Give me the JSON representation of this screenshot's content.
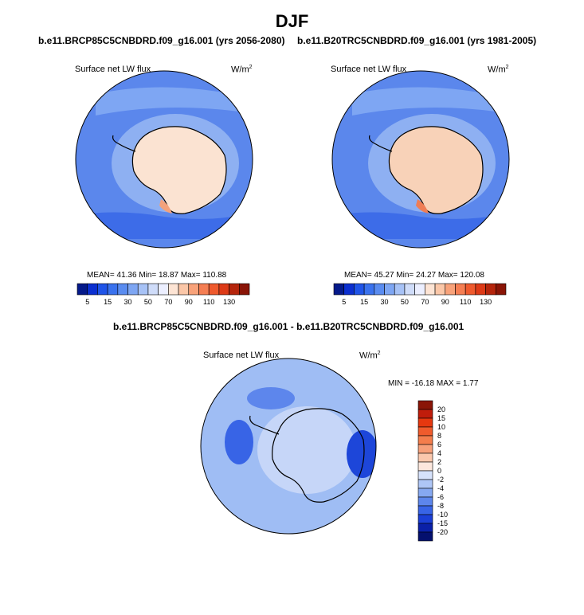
{
  "page": {
    "title": "DJF"
  },
  "panels": [
    {
      "run_title": "b.e11.BRCP85C5CNBDRD.f09_g16.001 (yrs 2056-2080)",
      "var_label": "Surface net LW flux",
      "unit": "W/m",
      "unit_sup": "2",
      "stats": "MEAN=  41.36   Min=  18.87   Max=  110.88"
    },
    {
      "run_title": "b.e11.B20TRC5CNBDRD.f09_g16.001 (yrs 1981-2005)",
      "var_label": "Surface net LW flux",
      "unit": "W/m",
      "unit_sup": "2",
      "stats": "MEAN=  45.27   Min=  24.27   Max=  120.08"
    }
  ],
  "diff": {
    "title": "b.e11.BRCP85C5CNBDRD.f09_g16.001 - b.e11.B20TRC5CNBDRD.f09_g16.001",
    "var_label": "Surface net LW flux",
    "unit": "W/m",
    "unit_sup": "2",
    "stats": "MIN = -16.18 MAX =   1.77"
  },
  "chart_data": [
    {
      "type": "heatmap",
      "projection": "south polar stereographic",
      "variable": "Surface net LW flux",
      "units": "W/m2",
      "mean": 41.36,
      "min": 18.87,
      "max": 110.88,
      "colorbar": {
        "orientation": "horizontal",
        "levels": [
          5,
          10,
          15,
          20,
          25,
          30,
          40,
          50,
          60,
          70,
          80,
          90,
          100,
          110,
          120,
          130
        ],
        "tick_labels": [
          "5",
          "15",
          "30",
          "50",
          "70",
          "90",
          "110",
          "130"
        ],
        "colors": [
          "#051a8a",
          "#0b2fd0",
          "#1f54e8",
          "#3a72ee",
          "#5a8cf0",
          "#7ea6f3",
          "#a7c2f6",
          "#cfdcf9",
          "#ecefff",
          "#fde4d4",
          "#fbc7a8",
          "#f8a27a",
          "#f57e53",
          "#ef5a2e",
          "#dd3a17",
          "#b5250c",
          "#8a1507"
        ]
      },
      "regions": {
        "ocean": "#5b87ec",
        "coastal_band": "#8eb0f2",
        "continent": "#fbe3d2",
        "peninsula": "#f3a27c"
      }
    },
    {
      "type": "heatmap",
      "projection": "south polar stereographic",
      "variable": "Surface net LW flux",
      "units": "W/m2",
      "mean": 45.27,
      "min": 24.27,
      "max": 120.08,
      "colorbar": {
        "orientation": "horizontal",
        "levels": [
          5,
          10,
          15,
          20,
          25,
          30,
          40,
          50,
          60,
          70,
          80,
          90,
          100,
          110,
          120,
          130
        ],
        "tick_labels": [
          "5",
          "15",
          "30",
          "50",
          "70",
          "90",
          "110",
          "130"
        ],
        "colors": [
          "#051a8a",
          "#0b2fd0",
          "#1f54e8",
          "#3a72ee",
          "#5a8cf0",
          "#7ea6f3",
          "#a7c2f6",
          "#cfdcf9",
          "#ecefff",
          "#fde4d4",
          "#fbc7a8",
          "#f8a27a",
          "#f57e53",
          "#ef5a2e",
          "#dd3a17",
          "#b5250c",
          "#8a1507"
        ]
      },
      "regions": {
        "ocean": "#5b87ec",
        "coastal_band": "#8eb0f2",
        "continent": "#f8d2b8",
        "peninsula": "#ef7d55"
      }
    },
    {
      "type": "heatmap",
      "projection": "south polar stereographic",
      "variable": "Surface net LW flux (difference)",
      "units": "W/m2",
      "min": -16.18,
      "max": 1.77,
      "colorbar": {
        "orientation": "vertical",
        "tick_labels": [
          "20",
          "15",
          "10",
          "8",
          "6",
          "4",
          "2",
          "0",
          "-2",
          "-4",
          "-6",
          "-8",
          "-10",
          "-15",
          "-20"
        ],
        "colors": [
          "#8a1507",
          "#c01d0b",
          "#e6380f",
          "#f05b2c",
          "#f47d4c",
          "#f7a07a",
          "#fbc8ad",
          "#fde7dd",
          "#d6e2fb",
          "#aec6f6",
          "#86a8f1",
          "#5d86ec",
          "#3864e6",
          "#1b3fd6",
          "#0a20a8",
          "#04106e"
        ]
      },
      "regions": {
        "ocean": "#9fbdf4",
        "continent": "#c6d6f8",
        "strong_negative": "#1d46d9"
      }
    }
  ]
}
